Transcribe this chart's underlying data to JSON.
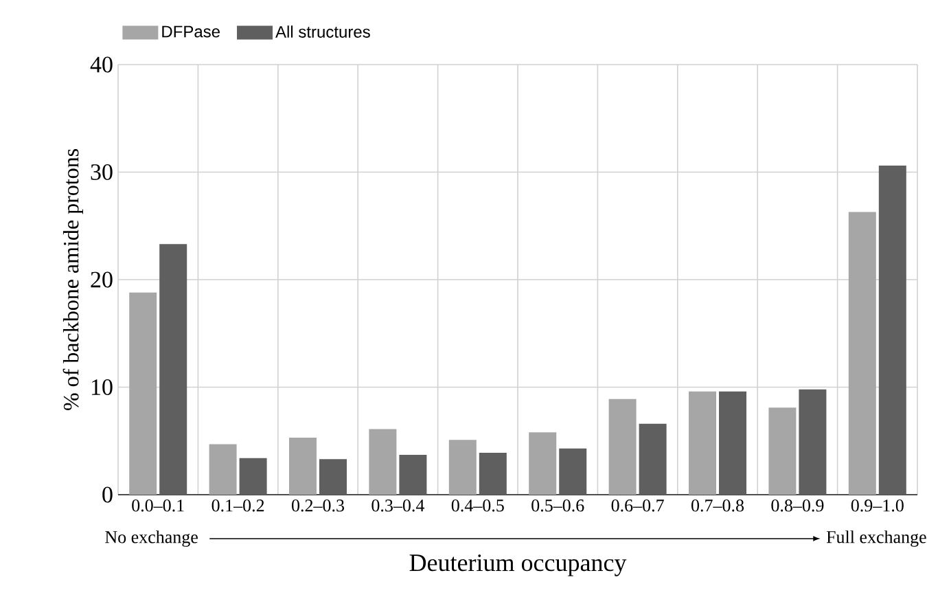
{
  "chart_data": {
    "type": "bar",
    "xlabel": "Deuterium occupancy",
    "ylabel": "% of backbone amide protons",
    "categories": [
      "0.0–0.1",
      "0.1–0.2",
      "0.2–0.3",
      "0.3–0.4",
      "0.4–0.5",
      "0.5–0.6",
      "0.6–0.7",
      "0.7–0.8",
      "0.8–0.9",
      "0.9–1.0"
    ],
    "series": [
      {
        "name": "DFPase",
        "color": "#a6a6a6",
        "values": [
          18.8,
          4.7,
          5.3,
          6.1,
          5.1,
          5.8,
          8.9,
          9.6,
          8.1,
          26.3
        ]
      },
      {
        "name": "All structures",
        "color": "#5f5f5f",
        "values": [
          23.3,
          3.4,
          3.3,
          3.7,
          3.9,
          4.3,
          6.6,
          9.6,
          9.8,
          30.6
        ]
      }
    ],
    "ylim": [
      0,
      40
    ],
    "yticks": [
      0,
      10,
      20,
      30,
      40
    ],
    "grid": true,
    "legend": "top left",
    "annotations": [
      "No exchange",
      "Full exchange"
    ]
  }
}
